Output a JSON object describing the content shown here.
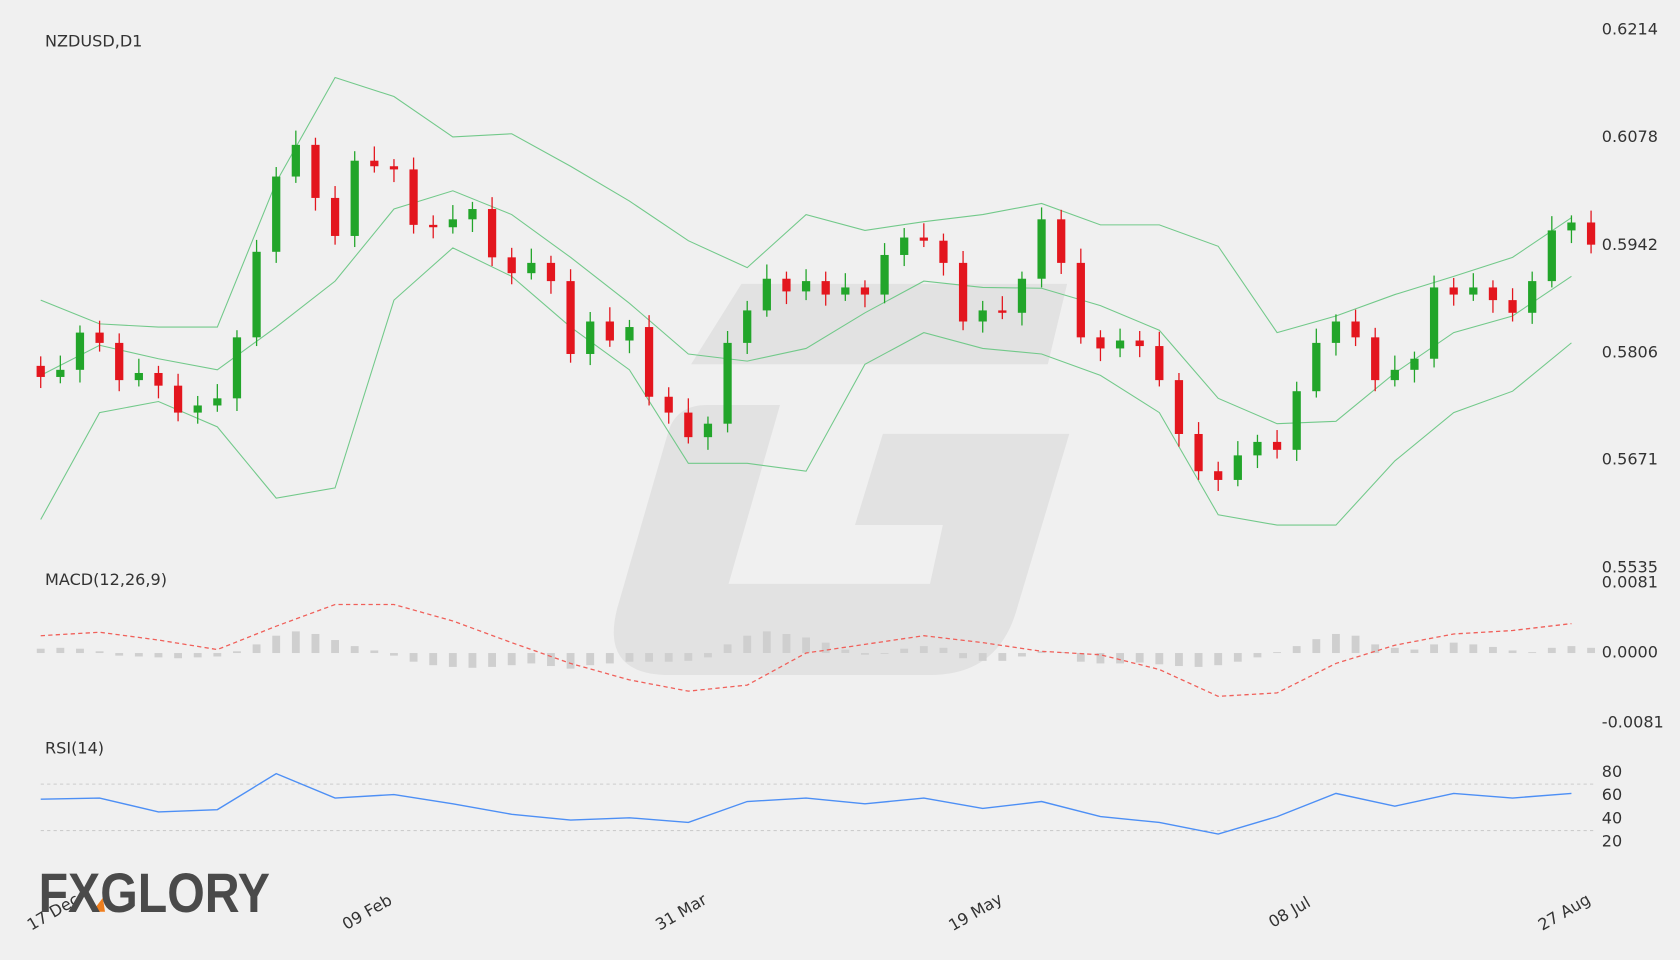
{
  "logo": "FXGLORY",
  "chart_data": [
    {
      "type": "candlestick",
      "title": "NZDUSD,D1",
      "up_color": "#22a52a",
      "down_color": "#e3161e",
      "ylim": [
        0.5535,
        0.6214
      ],
      "yticks": [
        0.5535,
        0.5671,
        0.5806,
        0.5942,
        0.6078,
        0.6214
      ],
      "xticks": [
        {
          "value": 0,
          "label": "17 Dec"
        },
        {
          "value": 16,
          "label": "09 Feb"
        },
        {
          "value": 32,
          "label": "31 Mar"
        },
        {
          "value": 47,
          "label": "19 May"
        },
        {
          "value": 63,
          "label": "08 Jul"
        },
        {
          "value": 77,
          "label": "27 Aug"
        }
      ],
      "candles": [
        [
          0.579,
          0.5802,
          0.5762,
          0.5776
        ],
        [
          0.5776,
          0.5803,
          0.5768,
          0.5785
        ],
        [
          0.5785,
          0.5841,
          0.5769,
          0.5832
        ],
        [
          0.5832,
          0.5847,
          0.5808,
          0.5819
        ],
        [
          0.5819,
          0.5831,
          0.5758,
          0.5772
        ],
        [
          0.5772,
          0.5799,
          0.5764,
          0.5781
        ],
        [
          0.5781,
          0.579,
          0.5749,
          0.5765
        ],
        [
          0.5765,
          0.578,
          0.572,
          0.5731
        ],
        [
          0.5731,
          0.5752,
          0.5717,
          0.574
        ],
        [
          0.574,
          0.5767,
          0.5732,
          0.5749
        ],
        [
          0.5749,
          0.5835,
          0.5733,
          0.5826
        ],
        [
          0.5826,
          0.5949,
          0.5815,
          0.5934
        ],
        [
          0.5934,
          0.6041,
          0.592,
          0.6029
        ],
        [
          0.6029,
          0.6087,
          0.6021,
          0.6069
        ],
        [
          0.6069,
          0.6078,
          0.5986,
          0.6002
        ],
        [
          0.6002,
          0.6017,
          0.5943,
          0.5954
        ],
        [
          0.5954,
          0.6061,
          0.594,
          0.6049
        ],
        [
          0.6049,
          0.6067,
          0.6034,
          0.6042
        ],
        [
          0.6042,
          0.6051,
          0.6022,
          0.6038
        ],
        [
          0.6038,
          0.6053,
          0.5957,
          0.5968
        ],
        [
          0.5968,
          0.598,
          0.5951,
          0.5965
        ],
        [
          0.5965,
          0.5993,
          0.5957,
          0.5975
        ],
        [
          0.5975,
          0.5997,
          0.5959,
          0.5988
        ],
        [
          0.5988,
          0.6003,
          0.5916,
          0.5927
        ],
        [
          0.5927,
          0.5939,
          0.5893,
          0.5907
        ],
        [
          0.5907,
          0.5938,
          0.5899,
          0.592
        ],
        [
          0.592,
          0.5929,
          0.5881,
          0.5897
        ],
        [
          0.5897,
          0.5912,
          0.5794,
          0.5805
        ],
        [
          0.5805,
          0.5858,
          0.5791,
          0.5846
        ],
        [
          0.5846,
          0.5864,
          0.5814,
          0.5822
        ],
        [
          0.5822,
          0.5848,
          0.5806,
          0.5839
        ],
        [
          0.5839,
          0.5854,
          0.574,
          0.5751
        ],
        [
          0.5751,
          0.5763,
          0.5717,
          0.5731
        ],
        [
          0.5731,
          0.5749,
          0.5692,
          0.57
        ],
        [
          0.57,
          0.5726,
          0.5684,
          0.5717
        ],
        [
          0.5717,
          0.5834,
          0.5706,
          0.5819
        ],
        [
          0.5819,
          0.5872,
          0.5805,
          0.586
        ],
        [
          0.586,
          0.5918,
          0.5852,
          0.59
        ],
        [
          0.59,
          0.5909,
          0.5868,
          0.5884
        ],
        [
          0.5884,
          0.5912,
          0.5873,
          0.5897
        ],
        [
          0.5897,
          0.5909,
          0.5866,
          0.588
        ],
        [
          0.588,
          0.5907,
          0.5872,
          0.5889
        ],
        [
          0.5889,
          0.5898,
          0.5864,
          0.588
        ],
        [
          0.588,
          0.5945,
          0.5869,
          0.593
        ],
        [
          0.593,
          0.5964,
          0.5916,
          0.5952
        ],
        [
          0.5952,
          0.597,
          0.594,
          0.5948
        ],
        [
          0.5948,
          0.5957,
          0.5904,
          0.592
        ],
        [
          0.592,
          0.5935,
          0.5835,
          0.5846
        ],
        [
          0.5846,
          0.5872,
          0.5832,
          0.586
        ],
        [
          0.586,
          0.5878,
          0.5849,
          0.5857
        ],
        [
          0.5857,
          0.5909,
          0.5841,
          0.59
        ],
        [
          0.59,
          0.599,
          0.5889,
          0.5975
        ],
        [
          0.5975,
          0.5987,
          0.5906,
          0.592
        ],
        [
          0.592,
          0.5938,
          0.5818,
          0.5826
        ],
        [
          0.5826,
          0.5835,
          0.5796,
          0.5812
        ],
        [
          0.5812,
          0.5837,
          0.5801,
          0.5822
        ],
        [
          0.5822,
          0.5834,
          0.5801,
          0.5815
        ],
        [
          0.5815,
          0.5833,
          0.5764,
          0.5772
        ],
        [
          0.5772,
          0.5781,
          0.5688,
          0.5704
        ],
        [
          0.5704,
          0.5719,
          0.5646,
          0.5657
        ],
        [
          0.5657,
          0.5669,
          0.5632,
          0.5646
        ],
        [
          0.5646,
          0.5695,
          0.5638,
          0.5677
        ],
        [
          0.5677,
          0.5703,
          0.5661,
          0.5694
        ],
        [
          0.5694,
          0.5709,
          0.5673,
          0.5684
        ],
        [
          0.5684,
          0.577,
          0.567,
          0.5758
        ],
        [
          0.5758,
          0.5837,
          0.575,
          0.5819
        ],
        [
          0.5819,
          0.5855,
          0.5803,
          0.5846
        ],
        [
          0.5846,
          0.5861,
          0.5815,
          0.5826
        ],
        [
          0.5826,
          0.5838,
          0.5758,
          0.5772
        ],
        [
          0.5772,
          0.5803,
          0.5764,
          0.5785
        ],
        [
          0.5785,
          0.5808,
          0.5769,
          0.5799
        ],
        [
          0.5799,
          0.5904,
          0.5788,
          0.5889
        ],
        [
          0.5889,
          0.5901,
          0.5866,
          0.588
        ],
        [
          0.588,
          0.5907,
          0.5872,
          0.5889
        ],
        [
          0.5889,
          0.5898,
          0.5857,
          0.5873
        ],
        [
          0.5873,
          0.5888,
          0.5846,
          0.5857
        ],
        [
          0.5857,
          0.5909,
          0.5843,
          0.5897
        ],
        [
          0.5897,
          0.5979,
          0.5889,
          0.5961
        ],
        [
          0.5961,
          0.598,
          0.5945,
          0.5971
        ],
        [
          0.5971,
          0.5986,
          0.5932,
          0.5943
        ]
      ],
      "bands": {
        "color": "#72c98a",
        "x": [
          0,
          3,
          6,
          9,
          12,
          15,
          18,
          21,
          24,
          27,
          30,
          33,
          36,
          39,
          42,
          45,
          48,
          51,
          54,
          57,
          60,
          63,
          66,
          69,
          72,
          75,
          78
        ],
        "upper": [
          0.5873,
          0.5843,
          0.5839,
          0.5839,
          0.6022,
          0.6154,
          0.613,
          0.6079,
          0.6083,
          0.6042,
          0.5998,
          0.5948,
          0.5914,
          0.5981,
          0.5961,
          0.5972,
          0.5981,
          0.5995,
          0.5968,
          0.5968,
          0.5941,
          0.5832,
          0.5853,
          0.588,
          0.5903,
          0.5927,
          0.5977
        ],
        "middle": [
          0.5778,
          0.5816,
          0.5799,
          0.5785,
          0.5839,
          0.5897,
          0.5988,
          0.6011,
          0.5981,
          0.5927,
          0.5869,
          0.5805,
          0.5796,
          0.5812,
          0.5857,
          0.5897,
          0.5889,
          0.5888,
          0.5866,
          0.5835,
          0.5749,
          0.5717,
          0.572,
          0.5781,
          0.5832,
          0.5853,
          0.5903
        ],
        "lower": [
          0.5596,
          0.5731,
          0.5745,
          0.5713,
          0.5623,
          0.5636,
          0.5873,
          0.5939,
          0.5903,
          0.5839,
          0.5785,
          0.5667,
          0.5667,
          0.5657,
          0.5792,
          0.5832,
          0.5812,
          0.5805,
          0.5778,
          0.5731,
          0.5602,
          0.5589,
          0.5589,
          0.567,
          0.5731,
          0.5758,
          0.5819
        ]
      }
    },
    {
      "type": "macd",
      "title": "MACD(12,26,9)",
      "ylim": [
        -0.0081,
        0.0081
      ],
      "yticks": [
        -0.0081,
        {
          "value": 0,
          "label": "0.0000"
        },
        0.0081
      ],
      "histogram": {
        "color": "#cfcfcf",
        "values": [
          0.0005,
          0.0006,
          0.0005,
          0.0002,
          -0.0003,
          -0.0004,
          -0.0005,
          -0.0006,
          -0.0005,
          -0.0004,
          0.0002,
          0.001,
          0.002,
          0.0025,
          0.0022,
          0.0015,
          0.0008,
          0.0003,
          -0.0003,
          -0.001,
          -0.0014,
          -0.0016,
          -0.0017,
          -0.0016,
          -0.0014,
          -0.0012,
          -0.0015,
          -0.0018,
          -0.0014,
          -0.0012,
          -0.001,
          -0.001,
          -0.001,
          -0.0009,
          -0.0005,
          0.001,
          0.002,
          0.0025,
          0.0022,
          0.0018,
          0.0012,
          0.0004,
          -0.0002,
          -0.0001,
          0.0005,
          0.0008,
          0.0006,
          -0.0006,
          -0.0009,
          -0.0009,
          -0.0004,
          0.0002,
          0.0001,
          -0.001,
          -0.0012,
          -0.0012,
          -0.0011,
          -0.0013,
          -0.0015,
          -0.0016,
          -0.0014,
          -0.001,
          -0.0005,
          0.0001,
          0.0008,
          0.0016,
          0.0022,
          0.002,
          0.001,
          0.0006,
          0.0004,
          0.001,
          0.0012,
          0.001,
          0.0007,
          0.0003,
          0.0001,
          0.0006,
          0.0008,
          0.0006
        ]
      },
      "signal": {
        "color": "#f0605a",
        "x": [
          0,
          3,
          6,
          9,
          12,
          15,
          18,
          21,
          24,
          27,
          30,
          33,
          36,
          39,
          42,
          45,
          48,
          51,
          54,
          57,
          60,
          63,
          66,
          69,
          72,
          75,
          78
        ],
        "values": [
          0.002,
          0.0024,
          0.0015,
          0.0004,
          0.0031,
          0.0056,
          0.0056,
          0.0037,
          0.0012,
          -0.0012,
          -0.0031,
          -0.0044,
          -0.0037,
          0.0,
          0.001,
          0.002,
          0.0012,
          0.0002,
          -0.0002,
          -0.0019,
          -0.005,
          -0.0046,
          -0.0012,
          0.0009,
          0.0022,
          0.0026,
          0.0034
        ]
      }
    },
    {
      "type": "line",
      "title": "RSI(14)",
      "ylim": [
        10,
        90
      ],
      "yticks": [
        20,
        40,
        60,
        80
      ],
      "levels": [
        30,
        70
      ],
      "level_color": "#cccccc",
      "color": "#4d8ff5",
      "x": [
        0,
        3,
        6,
        9,
        12,
        15,
        18,
        21,
        24,
        27,
        30,
        33,
        36,
        39,
        42,
        45,
        48,
        51,
        54,
        57,
        60,
        63,
        66,
        69,
        72,
        75,
        78
      ],
      "values": [
        57,
        58,
        46,
        48,
        79,
        58,
        61,
        53,
        44,
        39,
        41,
        37,
        55,
        58,
        53,
        58,
        49,
        55,
        42,
        37,
        27,
        42,
        62,
        51,
        62,
        58,
        62
      ]
    }
  ]
}
